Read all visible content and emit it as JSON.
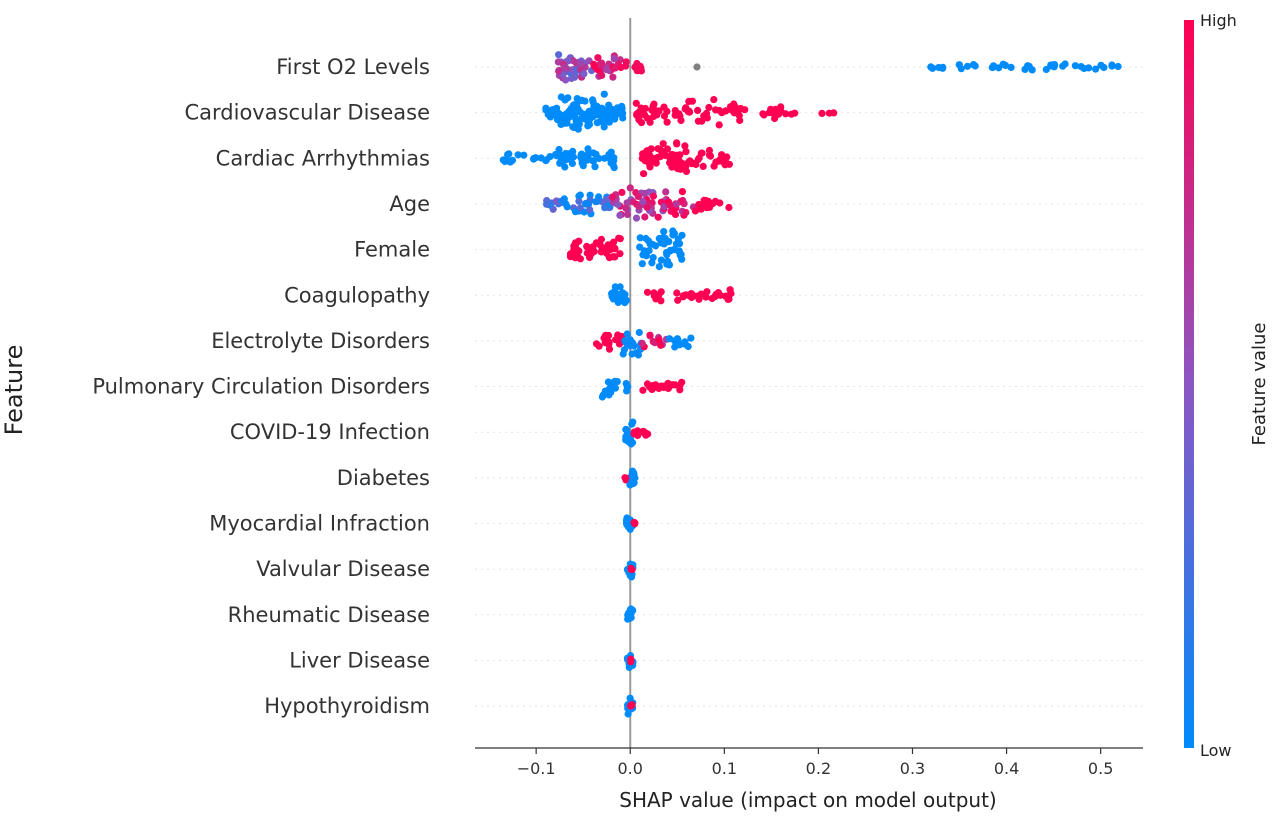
{
  "chart_data": {
    "type": "scatter",
    "subtype": "shap-beeswarm",
    "xlabel": "SHAP value (impact on model output)",
    "ylabel": "Feature",
    "xlim": [
      -0.165,
      0.545
    ],
    "xticks": [
      -0.1,
      0.0,
      0.1,
      0.2,
      0.3,
      0.4,
      0.5
    ],
    "xtick_labels": [
      "−0.1",
      "0.0",
      "0.1",
      "0.2",
      "0.3",
      "0.4",
      "0.5"
    ],
    "zero_line": true,
    "grid": false,
    "colors": {
      "low": "#008bfb",
      "mid": "#8c56c2",
      "high": "#ff0052",
      "neutral": "#808080",
      "zero_line": "#999999"
    },
    "colorbar": {
      "title": "Feature value",
      "high_label": "High",
      "low_label": "Low",
      "placement": "right"
    },
    "features": [
      {
        "name": "First O2 Levels",
        "clusters": [
          {
            "range": [
              -0.08,
              -0.04
            ],
            "v": 0.5,
            "n": 46,
            "h": 0.75
          },
          {
            "range": [
              -0.04,
              -0.01
            ],
            "v": 0.8,
            "n": 26,
            "h": 0.6
          },
          {
            "range": [
              -0.01,
              0.012
            ],
            "v": 0.95,
            "n": 12,
            "h": 0.3
          },
          {
            "range": [
              0.07,
              0.072
            ],
            "v": null,
            "n": 1,
            "h": 0.0
          },
          {
            "range": [
              0.31,
              0.52
            ],
            "v": 0.0,
            "n": 40,
            "h": 0.15
          }
        ]
      },
      {
        "name": "Cardiovascular Disease",
        "clusters": [
          {
            "range": [
              -0.09,
              -0.02
            ],
            "v": 0.0,
            "n": 90,
            "h": 0.85
          },
          {
            "range": [
              -0.02,
              0.0
            ],
            "v": 0.0,
            "n": 14,
            "h": 0.5
          },
          {
            "range": [
              0.004,
              0.12
            ],
            "v": 1.0,
            "n": 65,
            "h": 0.6
          },
          {
            "range": [
              0.12,
              0.18
            ],
            "v": 1.0,
            "n": 16,
            "h": 0.35
          },
          {
            "range": [
              0.195,
              0.222
            ],
            "v": 1.0,
            "n": 3,
            "h": 0.1
          }
        ]
      },
      {
        "name": "Cardiac Arrhythmias",
        "clusters": [
          {
            "range": [
              -0.135,
              -0.08
            ],
            "v": 0.0,
            "n": 18,
            "h": 0.3
          },
          {
            "range": [
              -0.08,
              -0.015
            ],
            "v": 0.0,
            "n": 48,
            "h": 0.5
          },
          {
            "range": [
              0.012,
              0.06
            ],
            "v": 1.0,
            "n": 55,
            "h": 0.85
          },
          {
            "range": [
              0.06,
              0.11
            ],
            "v": 1.0,
            "n": 25,
            "h": 0.5
          }
        ]
      },
      {
        "name": "Age",
        "clusters": [
          {
            "range": [
              -0.095,
              -0.06
            ],
            "v": 0.22,
            "n": 14,
            "h": 0.35
          },
          {
            "range": [
              -0.06,
              -0.02
            ],
            "v": 0.1,
            "n": 26,
            "h": 0.55
          },
          {
            "range": [
              -0.02,
              0.04
            ],
            "v": 0.72,
            "n": 50,
            "h": 0.85
          },
          {
            "range": [
              0.04,
              0.07
            ],
            "v": 0.92,
            "n": 18,
            "h": 0.6
          },
          {
            "range": [
              0.07,
              0.105
            ],
            "v": 1.0,
            "n": 14,
            "h": 0.3
          }
        ]
      },
      {
        "name": "Female",
        "clusters": [
          {
            "range": [
              -0.065,
              -0.01
            ],
            "v": 1.0,
            "n": 46,
            "h": 0.6
          },
          {
            "range": [
              0.01,
              0.055
            ],
            "v": 0.0,
            "n": 46,
            "h": 0.9
          }
        ]
      },
      {
        "name": "Coagulopathy",
        "clusters": [
          {
            "range": [
              -0.02,
              -0.002
            ],
            "v": 0.0,
            "n": 24,
            "h": 0.6
          },
          {
            "range": [
              0.018,
              0.108
            ],
            "v": 1.0,
            "n": 34,
            "h": 0.3
          }
        ]
      },
      {
        "name": "Electrolyte Disorders",
        "clusters": [
          {
            "range": [
              -0.038,
              -0.008
            ],
            "v": 1.0,
            "n": 16,
            "h": 0.5
          },
          {
            "range": [
              -0.008,
              0.012
            ],
            "v": 0.02,
            "n": 22,
            "h": 0.8
          },
          {
            "range": [
              0.012,
              0.04
            ],
            "v": 0.85,
            "n": 12,
            "h": 0.4
          },
          {
            "range": [
              0.04,
              0.068
            ],
            "v": 0.0,
            "n": 10,
            "h": 0.35
          }
        ]
      },
      {
        "name": "Pulmonary Circulation Disorders",
        "clusters": [
          {
            "range": [
              -0.03,
              -0.002
            ],
            "v": 0.0,
            "n": 18,
            "h": 0.55
          },
          {
            "range": [
              0.01,
              0.055
            ],
            "v": 1.0,
            "n": 22,
            "h": 0.3
          }
        ]
      },
      {
        "name": "COVID-19 Infection",
        "clusters": [
          {
            "range": [
              -0.005,
              0.003
            ],
            "v": 0.0,
            "n": 14,
            "h": 0.6
          },
          {
            "range": [
              0.004,
              0.023
            ],
            "v": 1.0,
            "n": 10,
            "h": 0.18
          }
        ]
      },
      {
        "name": "Diabetes",
        "clusters": [
          {
            "range": [
              -0.006,
              -0.001
            ],
            "v": 1.0,
            "n": 6,
            "h": 0.2
          },
          {
            "range": [
              -0.001,
              0.005
            ],
            "v": 0.0,
            "n": 12,
            "h": 0.5
          }
        ]
      },
      {
        "name": "Myocardial Infraction",
        "clusters": [
          {
            "range": [
              -0.004,
              0.003
            ],
            "v": 0.0,
            "n": 14,
            "h": 0.45
          },
          {
            "range": [
              0.003,
              0.006
            ],
            "v": 1.0,
            "n": 3,
            "h": 0.1
          }
        ]
      },
      {
        "name": "Valvular Disease",
        "clusters": [
          {
            "range": [
              -0.003,
              0.003
            ],
            "v": 0.0,
            "n": 14,
            "h": 0.45
          },
          {
            "range": [
              0.0,
              0.002
            ],
            "v": 1.0,
            "n": 3,
            "h": 0.1
          }
        ]
      },
      {
        "name": "Rheumatic Disease",
        "clusters": [
          {
            "range": [
              -0.003,
              0.003
            ],
            "v": 0.0,
            "n": 14,
            "h": 0.45
          }
        ]
      },
      {
        "name": "Liver Disease",
        "clusters": [
          {
            "range": [
              -0.003,
              0.003
            ],
            "v": 0.0,
            "n": 14,
            "h": 0.45
          },
          {
            "range": [
              0.0,
              0.002
            ],
            "v": 1.0,
            "n": 3,
            "h": 0.1
          }
        ]
      },
      {
        "name": "Hypothyroidism",
        "clusters": [
          {
            "range": [
              -0.003,
              0.003
            ],
            "v": 0.0,
            "n": 14,
            "h": 0.45
          },
          {
            "range": [
              0.0,
              0.002
            ],
            "v": 1.0,
            "n": 3,
            "h": 0.1
          }
        ]
      }
    ]
  }
}
